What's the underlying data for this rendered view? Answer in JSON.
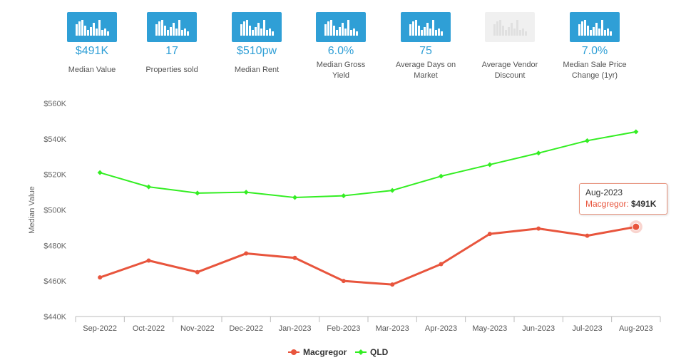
{
  "stats": [
    {
      "value": "$491K",
      "label": "Median Value",
      "muted": false
    },
    {
      "value": "17",
      "label": "Properties sold",
      "muted": false
    },
    {
      "value": "$510pw",
      "label": "Median Rent",
      "muted": false
    },
    {
      "value": "6.0%",
      "label": "Median Gross Yield",
      "muted": false
    },
    {
      "value": "75",
      "label": "Average Days on Market",
      "muted": false
    },
    {
      "value": "",
      "label": "Average Vendor Discount",
      "muted": true
    },
    {
      "value": "7.0%",
      "label": "Median Sale Price Change (1yr)",
      "muted": false
    }
  ],
  "colors": {
    "accent": "#2f9fd6",
    "macgregor": "#e8553d",
    "qld": "#33ee22"
  },
  "chart_data": {
    "type": "line",
    "title": "",
    "xlabel": "",
    "ylabel": "Median Value",
    "categories": [
      "Sep-2022",
      "Oct-2022",
      "Nov-2022",
      "Dec-2022",
      "Jan-2023",
      "Feb-2023",
      "Mar-2023",
      "Apr-2023",
      "May-2023",
      "Jun-2023",
      "Jul-2023",
      "Aug-2023"
    ],
    "ylim": [
      440000,
      560000
    ],
    "yticks": [
      440000,
      460000,
      480000,
      500000,
      520000,
      540000,
      560000
    ],
    "ytick_labels": [
      "$440K",
      "$460K",
      "$480K",
      "$500K",
      "$520K",
      "$540K",
      "$560K"
    ],
    "series": [
      {
        "name": "Macgregor",
        "color": "#e8553d",
        "values": [
          462000,
          471500,
          465000,
          475500,
          473000,
          460000,
          458000,
          469500,
          486500,
          489500,
          485500,
          490500
        ]
      },
      {
        "name": "QLD",
        "color": "#33ee22",
        "values": [
          521000,
          513000,
          509500,
          510000,
          507000,
          508000,
          511000,
          519000,
          525500,
          532000,
          539000,
          544000
        ]
      }
    ],
    "legend_position": "bottom",
    "tooltip": {
      "date": "Aug-2023",
      "series": "Macgregor",
      "value": "$491K"
    }
  }
}
